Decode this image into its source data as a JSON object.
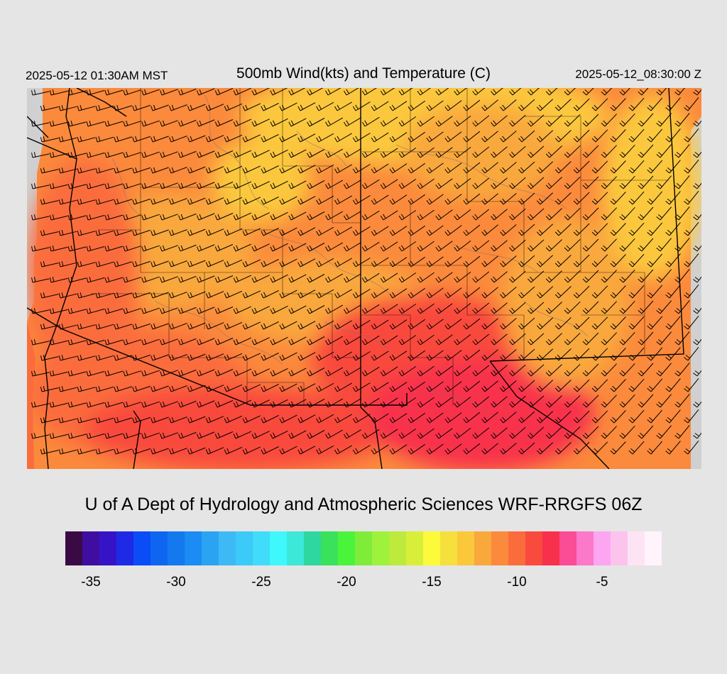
{
  "header": {
    "local_time": "2025-05-12 01:30AM MST",
    "title": "500mb Wind(kts) and Temperature (C)",
    "utc_time": "2025-05-12_08:30:00 Z"
  },
  "footer": {
    "credit": "U of A Dept of Hydrology and Atmospheric Sciences WRF-RRGFS 06Z"
  },
  "colorbar": {
    "colors": [
      "#3a0a44",
      "#3f0ea0",
      "#3514c8",
      "#1f2ae6",
      "#0a4cf5",
      "#0e66f0",
      "#1478ef",
      "#1a8cf3",
      "#2aa4f2",
      "#3dbaf5",
      "#3ccaf8",
      "#40dcfa",
      "#3ef8fb",
      "#3ce8d8",
      "#2ed6a0",
      "#3ae25c",
      "#4af43a",
      "#80ec3a",
      "#9ef23c",
      "#bdea3c",
      "#d8ef3a",
      "#fcfa3a",
      "#f6e03c",
      "#fbc83c",
      "#f9a83c",
      "#fb8a3c",
      "#fb6c3c",
      "#f94a3e",
      "#f8304c",
      "#fb4c96",
      "#fc78c8",
      "#fca6f2",
      "#fcc4ec",
      "#fde4f4",
      "#fff4fc"
    ],
    "tick_labels": [
      "-35",
      "-30",
      "-25",
      "-20",
      "-15",
      "-10",
      "-5"
    ],
    "tick_values": [
      -35,
      -30,
      -25,
      -20,
      -15,
      -10,
      -5
    ],
    "min": -36.5,
    "max": -1.5
  },
  "map": {
    "background_color": "#d0d0d0",
    "temperature_colors": {
      "yellow": "#fbc83c",
      "light_orange": "#f9a83c",
      "orange": "#fb8a3c",
      "red_orange": "#fb6c3c",
      "red": "#f94a3e",
      "crimson": "#f8304c"
    },
    "boundary_color": "#000000",
    "contour_color": "#8a6a6a"
  }
}
